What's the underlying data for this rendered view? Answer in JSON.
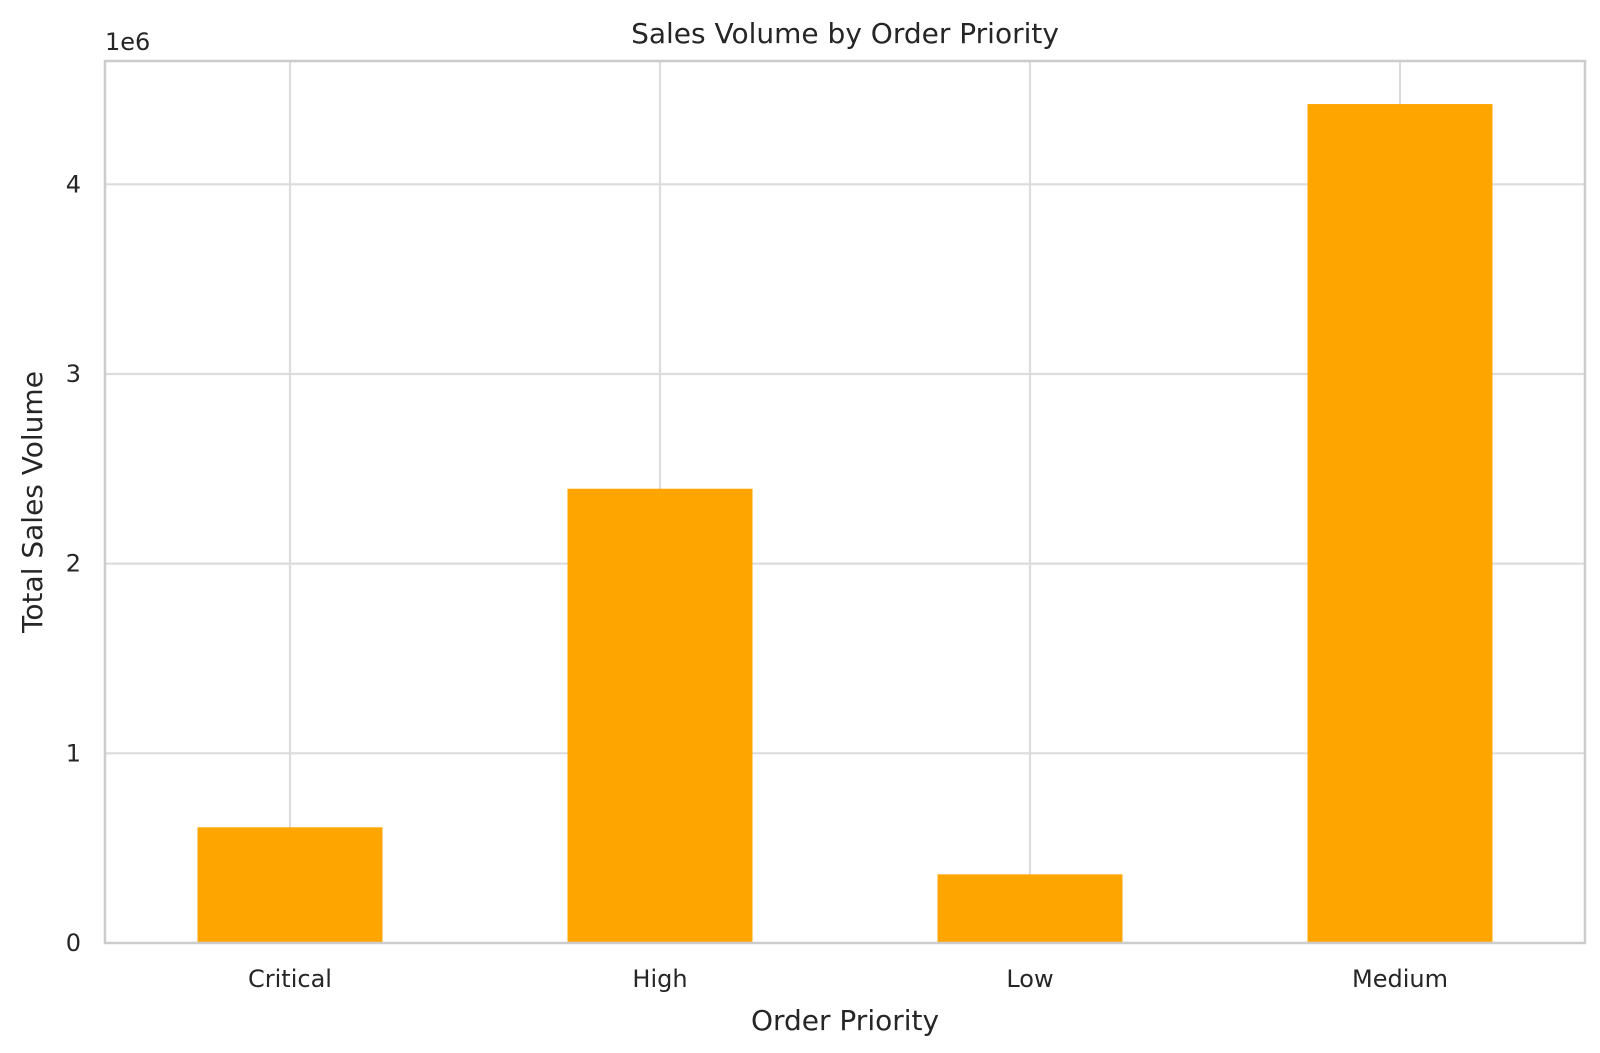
{
  "chart_data": {
    "type": "bar",
    "title": "Sales Volume by Order Priority",
    "xlabel": "Order Priority",
    "ylabel": "Total Sales Volume",
    "y_offset_label": "1e6",
    "categories": [
      "Critical",
      "High",
      "Low",
      "Medium"
    ],
    "values": [
      610000,
      2395000,
      362000,
      4423000
    ],
    "ylim": [
      0,
      4650000
    ],
    "yticks": [
      0,
      1000000,
      2000000,
      3000000,
      4000000
    ],
    "ytick_labels": [
      "0",
      "1",
      "2",
      "3",
      "4"
    ],
    "bar_color": "#FFA500",
    "grid": true
  }
}
